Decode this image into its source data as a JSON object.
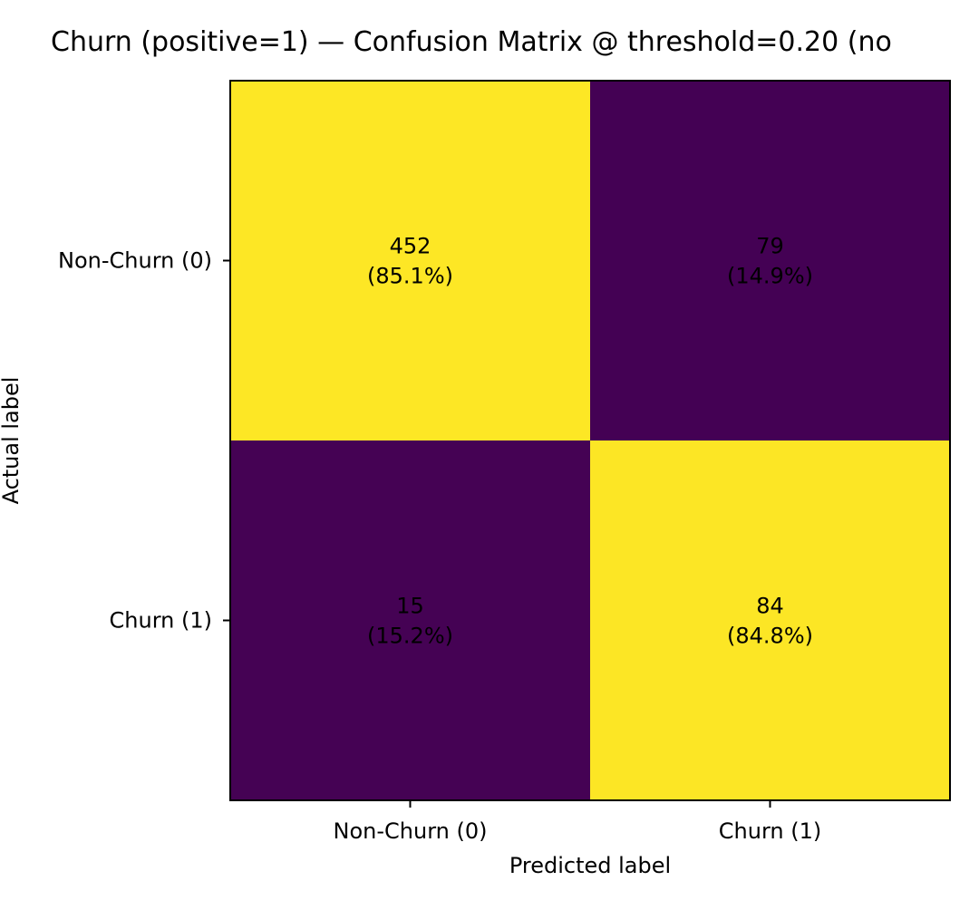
{
  "chart_data": {
    "type": "heatmap",
    "title": "Churn (positive=1) — Confusion Matrix @ threshold=0.20 (no",
    "xlabel": "Predicted label",
    "ylabel": "Actual label",
    "x_categories": [
      "Non-Churn (0)",
      "Churn (1)"
    ],
    "y_categories": [
      "Non-Churn (0)",
      "Churn (1)"
    ],
    "values": [
      [
        452,
        79
      ],
      [
        15,
        84
      ]
    ],
    "cell_labels": [
      [
        {
          "count": "452",
          "pct": "(85.1%)"
        },
        {
          "count": "79",
          "pct": "(14.9%)"
        }
      ],
      [
        {
          "count": "15",
          "pct": "(15.2%)"
        },
        {
          "count": "84",
          "pct": "(84.8%)"
        }
      ]
    ],
    "normalized": [
      [
        0.851,
        0.149
      ],
      [
        0.152,
        0.848
      ]
    ],
    "colormap": {
      "low": "#440154",
      "high": "#fde725"
    },
    "text_color": "#000000",
    "grid": false
  }
}
